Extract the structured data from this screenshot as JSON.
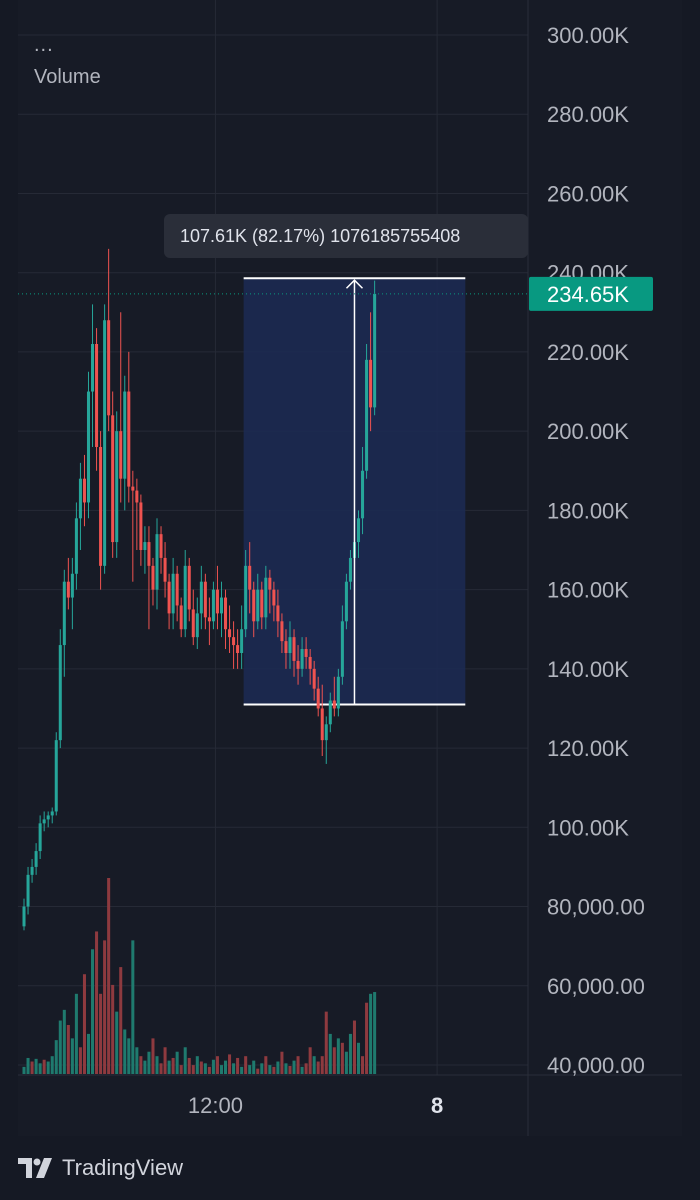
{
  "header": {
    "menu_dots": "...",
    "study_label": "Volume"
  },
  "footer": {
    "brand": "TradingView"
  },
  "colors": {
    "background": "#151924",
    "grid": "#262a36",
    "up": "#26a69a",
    "down": "#ef5350",
    "volume_up": "#1f7a6e",
    "volume_down": "#8e3a3f",
    "measure_fill": "#1c2a52",
    "price_badge": "#089981",
    "axis_text": "#b2b5be"
  },
  "chart_data": {
    "type": "candlestick",
    "price_axis": {
      "ticks": [
        {
          "value": 300000,
          "label": "300.00K"
        },
        {
          "value": 280000,
          "label": "280.00K"
        },
        {
          "value": 260000,
          "label": "260.00K"
        },
        {
          "value": 240000,
          "label": "240.00K"
        },
        {
          "value": 220000,
          "label": "220.00K"
        },
        {
          "value": 200000,
          "label": "200.00K"
        },
        {
          "value": 180000,
          "label": "180.00K"
        },
        {
          "value": 160000,
          "label": "160.00K"
        },
        {
          "value": 140000,
          "label": "140.00K"
        },
        {
          "value": 120000,
          "label": "120.00K"
        },
        {
          "value": 100000,
          "label": "100.00K"
        },
        {
          "value": 80000,
          "label": "80,000.00"
        },
        {
          "value": 60000,
          "label": "60,000.00"
        },
        {
          "value": 40000,
          "label": "40,000.00"
        }
      ],
      "range": [
        40000,
        300000
      ]
    },
    "time_axis": {
      "ticks": [
        {
          "label": "12:00",
          "bar": 48
        },
        {
          "label": "8",
          "bar": 103
        }
      ]
    },
    "last_price": {
      "value": 234650,
      "label": "234.65K"
    },
    "measure": {
      "from_bar": 55,
      "to_bar": 110,
      "low": 131000,
      "high": 238600,
      "label": "107.61K (82.17%) 1076185755408"
    },
    "candles": [
      [
        75000,
        82000,
        74000,
        80000
      ],
      [
        80000,
        90000,
        78000,
        88000
      ],
      [
        88000,
        92000,
        86000,
        90000
      ],
      [
        90000,
        96000,
        88000,
        94000
      ],
      [
        94000,
        103000,
        92000,
        101000
      ],
      [
        101000,
        104000,
        99000,
        102000
      ],
      [
        102000,
        104000,
        100000,
        103000
      ],
      [
        103000,
        105000,
        101000,
        104000
      ],
      [
        104000,
        124000,
        103000,
        122000
      ],
      [
        122000,
        150000,
        120000,
        146000
      ],
      [
        146000,
        165000,
        138000,
        162000
      ],
      [
        162000,
        168000,
        155000,
        158000
      ],
      [
        158000,
        168000,
        150000,
        164000
      ],
      [
        164000,
        182000,
        160000,
        178000
      ],
      [
        178000,
        192000,
        170000,
        188000
      ],
      [
        188000,
        194000,
        176000,
        182000
      ],
      [
        182000,
        215000,
        178000,
        210000
      ],
      [
        210000,
        232000,
        196000,
        222000
      ],
      [
        222000,
        226000,
        190000,
        196000
      ],
      [
        196000,
        200000,
        160000,
        166000
      ],
      [
        166000,
        232000,
        164000,
        228000
      ],
      [
        228000,
        246000,
        200000,
        204000
      ],
      [
        204000,
        210000,
        168000,
        172000
      ],
      [
        172000,
        205000,
        168000,
        200000
      ],
      [
        200000,
        230000,
        182000,
        188000
      ],
      [
        188000,
        214000,
        180000,
        210000
      ],
      [
        210000,
        220000,
        182000,
        186000
      ],
      [
        186000,
        190000,
        162000,
        185000
      ],
      [
        185000,
        188000,
        170000,
        182000
      ],
      [
        182000,
        184000,
        166000,
        170000
      ],
      [
        170000,
        176000,
        164000,
        172000
      ],
      [
        172000,
        176000,
        150000,
        166000
      ],
      [
        166000,
        168000,
        156000,
        160000
      ],
      [
        160000,
        178000,
        155000,
        174000
      ],
      [
        174000,
        176000,
        164000,
        168000
      ],
      [
        168000,
        172000,
        158000,
        162000
      ],
      [
        162000,
        164000,
        150000,
        154000
      ],
      [
        154000,
        168000,
        150000,
        164000
      ],
      [
        164000,
        166000,
        152000,
        156000
      ],
      [
        156000,
        158000,
        148000,
        150000
      ],
      [
        150000,
        170000,
        148000,
        166000
      ],
      [
        166000,
        168000,
        152000,
        155000
      ],
      [
        155000,
        160000,
        146000,
        148000
      ],
      [
        148000,
        158000,
        145000,
        154000
      ],
      [
        154000,
        166000,
        150000,
        162000
      ],
      [
        162000,
        164000,
        150000,
        153000
      ],
      [
        153000,
        158000,
        146000,
        152000
      ],
      [
        152000,
        162000,
        150000,
        160000
      ],
      [
        160000,
        166000,
        150000,
        154000
      ],
      [
        154000,
        162000,
        148000,
        158000
      ],
      [
        158000,
        160000,
        145000,
        150000
      ],
      [
        150000,
        156000,
        144000,
        148000
      ],
      [
        148000,
        152000,
        140000,
        146000
      ],
      [
        146000,
        150000,
        140000,
        144000
      ],
      [
        144000,
        156000,
        140000,
        150000
      ],
      [
        150000,
        170000,
        148000,
        166000
      ],
      [
        166000,
        172000,
        154000,
        160000
      ],
      [
        160000,
        162000,
        148000,
        152000
      ],
      [
        152000,
        164000,
        150000,
        160000
      ],
      [
        160000,
        162000,
        150000,
        153000
      ],
      [
        153000,
        166000,
        150000,
        163000
      ],
      [
        163000,
        165000,
        154000,
        160000
      ],
      [
        160000,
        162000,
        152000,
        156000
      ],
      [
        156000,
        160000,
        148000,
        152000
      ],
      [
        152000,
        154000,
        144000,
        147000
      ],
      [
        147000,
        150000,
        140000,
        144000
      ],
      [
        144000,
        152000,
        140000,
        148000
      ],
      [
        148000,
        150000,
        138000,
        142000
      ],
      [
        142000,
        146000,
        136000,
        140000
      ],
      [
        140000,
        148000,
        138000,
        145000
      ],
      [
        145000,
        148000,
        140000,
        143000
      ],
      [
        143000,
        145000,
        136000,
        140000
      ],
      [
        140000,
        142000,
        132000,
        135000
      ],
      [
        135000,
        138000,
        128000,
        130000
      ],
      [
        130000,
        136000,
        118000,
        122000
      ],
      [
        122000,
        128000,
        116000,
        126000
      ],
      [
        126000,
        134000,
        124000,
        132000
      ],
      [
        132000,
        138000,
        128000,
        130000
      ],
      [
        130000,
        140000,
        128000,
        138000
      ],
      [
        138000,
        156000,
        136000,
        152000
      ],
      [
        152000,
        164000,
        150000,
        162000
      ],
      [
        162000,
        170000,
        160000,
        168000
      ],
      [
        168000,
        176000,
        164000,
        172000
      ],
      [
        172000,
        180000,
        168000,
        178000
      ],
      [
        178000,
        196000,
        174000,
        190000
      ],
      [
        190000,
        222000,
        188000,
        218000
      ],
      [
        218000,
        230000,
        200000,
        206000
      ],
      [
        206000,
        238000,
        204000,
        234650
      ]
    ],
    "volume": {
      "range": [
        0,
        330000
      ],
      "values": [
        [
          8000,
          1
        ],
        [
          18000,
          1
        ],
        [
          14000,
          0
        ],
        [
          17000,
          1
        ],
        [
          12000,
          1
        ],
        [
          16000,
          0
        ],
        [
          14000,
          1
        ],
        [
          20000,
          1
        ],
        [
          38000,
          1
        ],
        [
          60000,
          1
        ],
        [
          72000,
          1
        ],
        [
          55000,
          0
        ],
        [
          40000,
          1
        ],
        [
          90000,
          1
        ],
        [
          30000,
          0
        ],
        [
          112000,
          0
        ],
        [
          45000,
          1
        ],
        [
          140000,
          1
        ],
        [
          160000,
          0
        ],
        [
          90000,
          0
        ],
        [
          150000,
          0
        ],
        [
          220000,
          0
        ],
        [
          100000,
          0
        ],
        [
          70000,
          1
        ],
        [
          120000,
          0
        ],
        [
          50000,
          1
        ],
        [
          40000,
          1
        ],
        [
          150000,
          1
        ],
        [
          30000,
          1
        ],
        [
          20000,
          0
        ],
        [
          15000,
          1
        ],
        [
          25000,
          1
        ],
        [
          40000,
          0
        ],
        [
          20000,
          1
        ],
        [
          12000,
          0
        ],
        [
          30000,
          0
        ],
        [
          15000,
          1
        ],
        [
          18000,
          0
        ],
        [
          25000,
          1
        ],
        [
          10000,
          0
        ],
        [
          30000,
          1
        ],
        [
          18000,
          0
        ],
        [
          10000,
          0
        ],
        [
          20000,
          1
        ],
        [
          14000,
          0
        ],
        [
          12000,
          1
        ],
        [
          8000,
          0
        ],
        [
          16000,
          1
        ],
        [
          20000,
          0
        ],
        [
          10000,
          1
        ],
        [
          15000,
          1
        ],
        [
          22000,
          0
        ],
        [
          12000,
          1
        ],
        [
          18000,
          0
        ],
        [
          8000,
          1
        ],
        [
          20000,
          0
        ],
        [
          10000,
          1
        ],
        [
          15000,
          1
        ],
        [
          6000,
          0
        ],
        [
          12000,
          1
        ],
        [
          20000,
          0
        ],
        [
          10000,
          1
        ],
        [
          8000,
          0
        ],
        [
          14000,
          1
        ],
        [
          25000,
          0
        ],
        [
          12000,
          1
        ],
        [
          9000,
          0
        ],
        [
          15000,
          1
        ],
        [
          20000,
          0
        ],
        [
          8000,
          1
        ],
        [
          12000,
          0
        ],
        [
          30000,
          0
        ],
        [
          20000,
          1
        ],
        [
          14000,
          0
        ],
        [
          20000,
          0
        ],
        [
          70000,
          0
        ],
        [
          45000,
          1
        ],
        [
          30000,
          0
        ],
        [
          40000,
          1
        ],
        [
          35000,
          0
        ],
        [
          25000,
          1
        ],
        [
          45000,
          1
        ],
        [
          60000,
          0
        ],
        [
          35000,
          1
        ],
        [
          20000,
          0
        ],
        [
          80000,
          0
        ],
        [
          90000,
          1
        ],
        [
          92000,
          1
        ]
      ]
    }
  }
}
